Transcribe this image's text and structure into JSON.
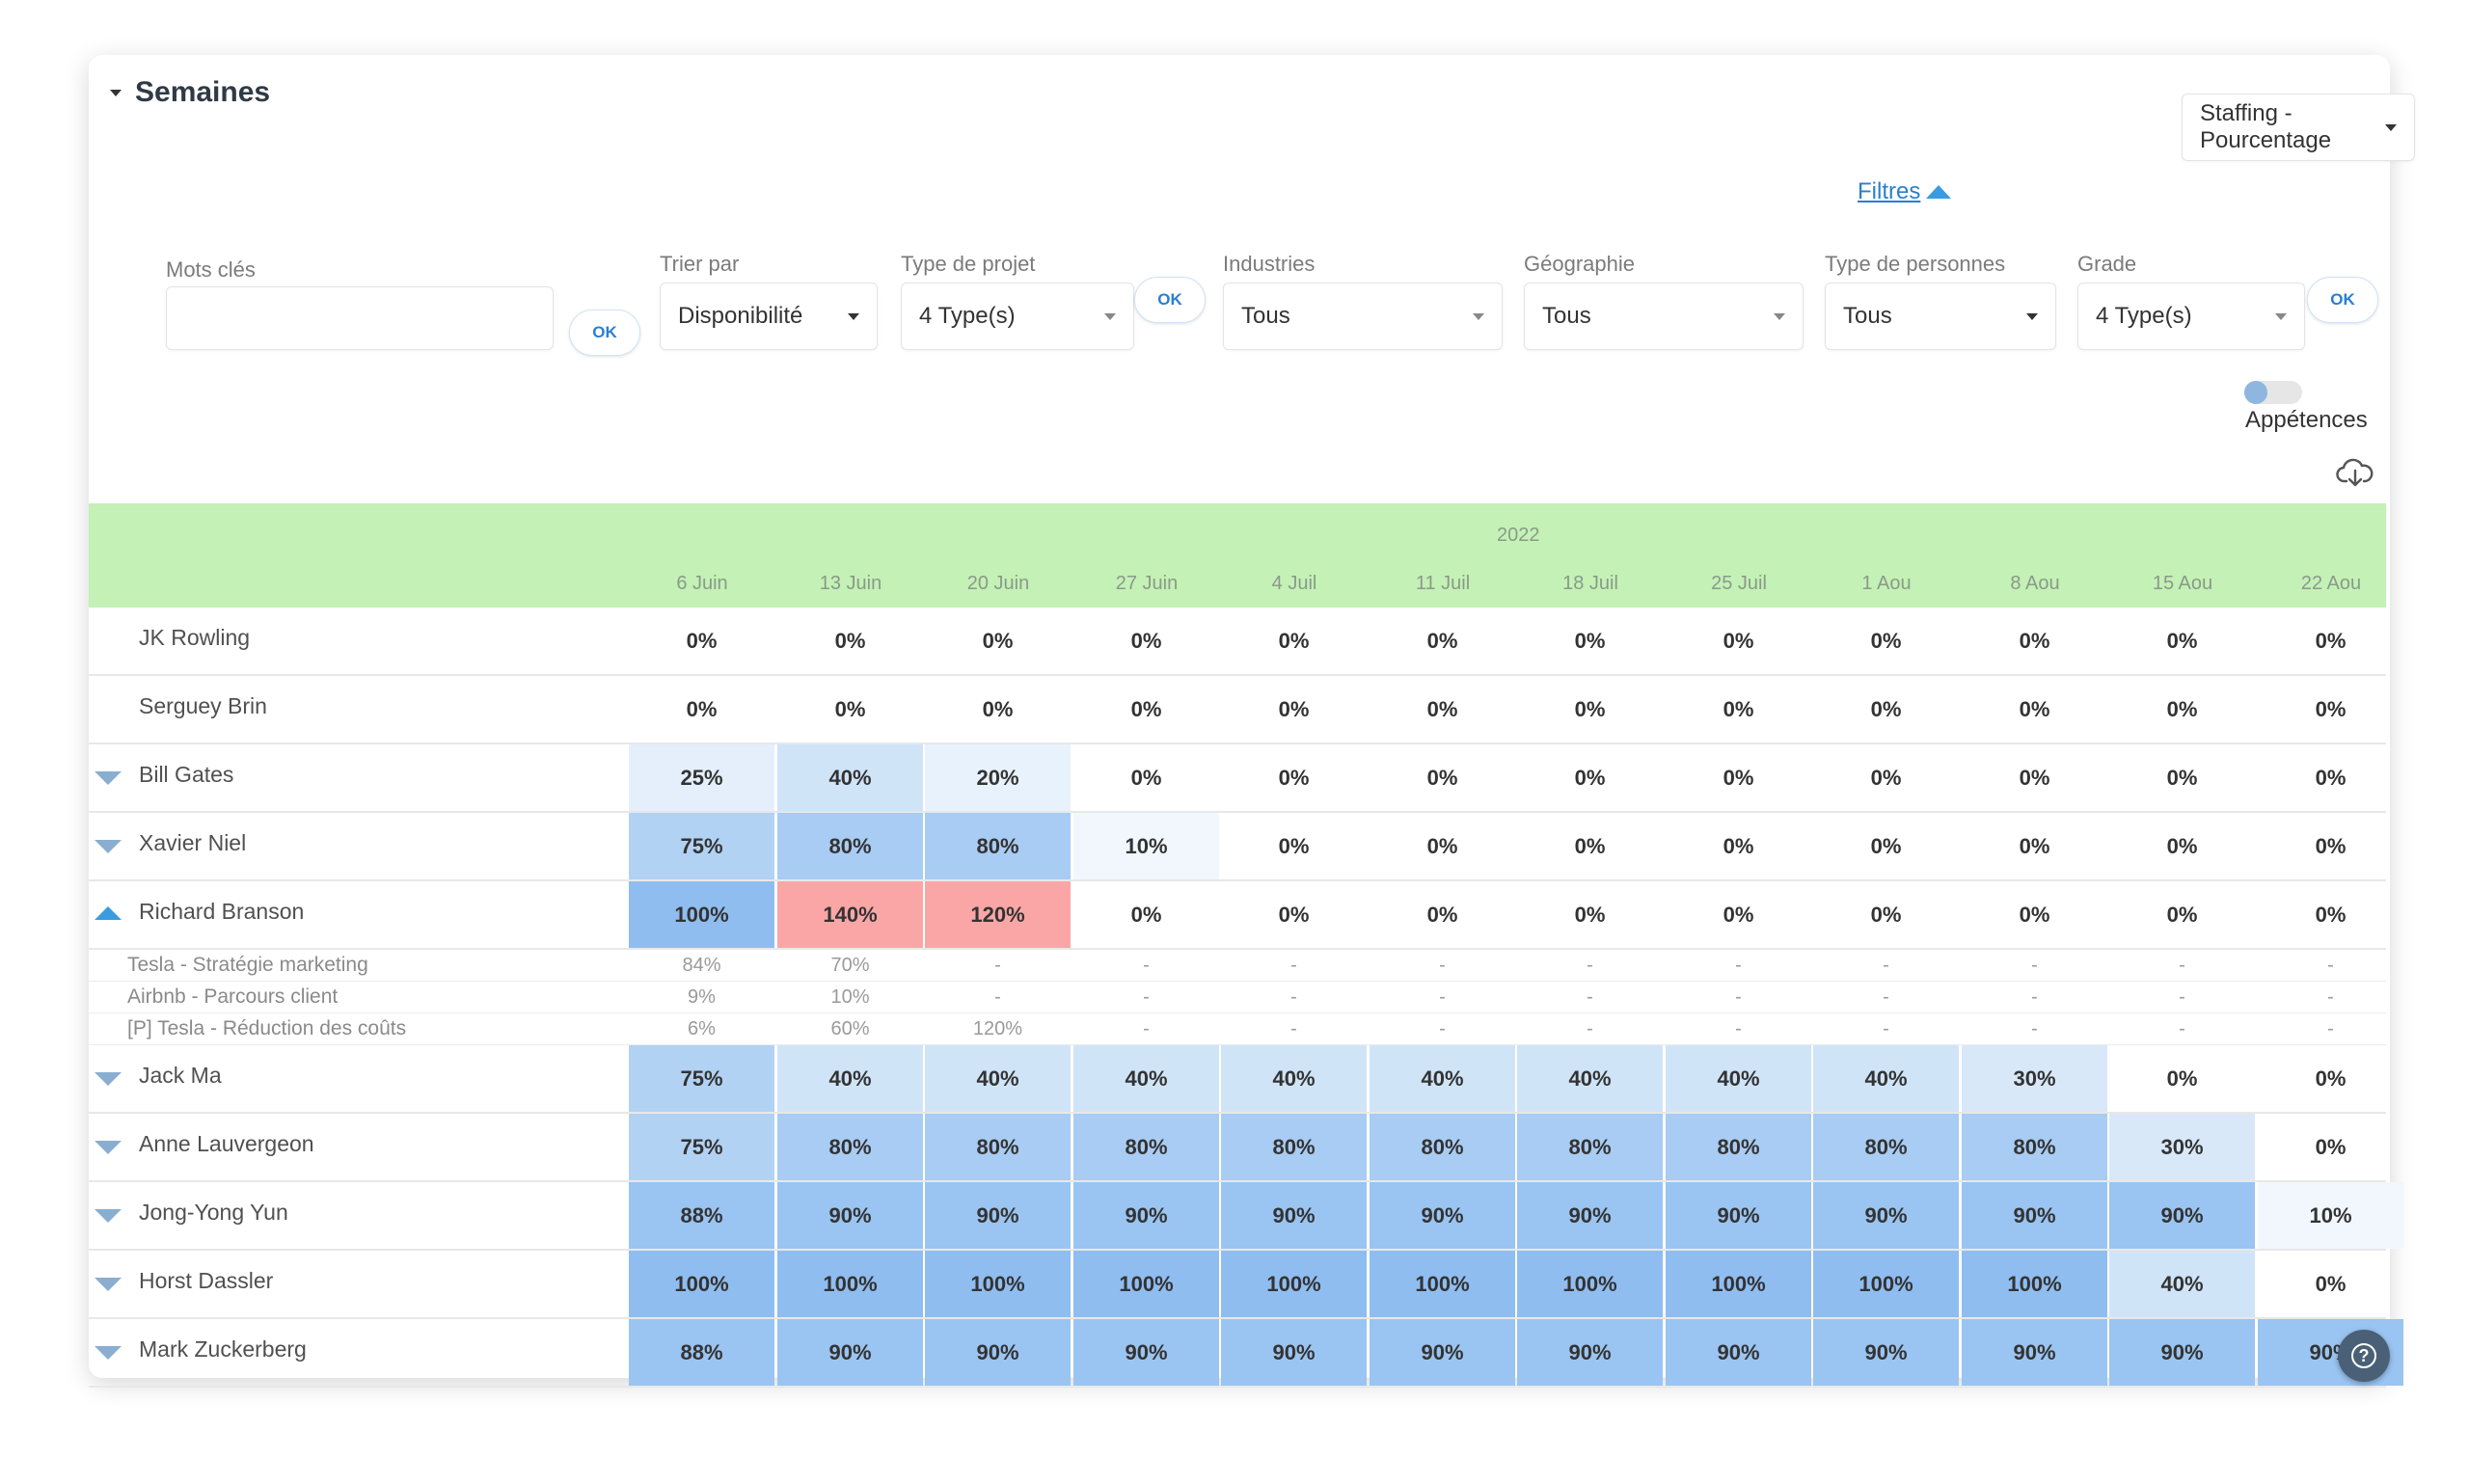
{
  "section": {
    "title": "Semaines"
  },
  "filters_link": "Filtres",
  "view_select": "Staffing - Pourcentage",
  "filters": {
    "keywords_label": "Mots clés",
    "keywords_value": "",
    "ok": "OK",
    "sort_label": "Trier par",
    "sort_value": "Disponibilité",
    "project_type_label": "Type de projet",
    "project_type_value": "4 Type(s)",
    "industries_label": "Industries",
    "industries_value": "Tous",
    "geo_label": "Géographie",
    "geo_value": "Tous",
    "people_type_label": "Type de personnes",
    "people_type_value": "Tous",
    "grade_label": "Grade",
    "grade_value": "4 Type(s)"
  },
  "toggle": {
    "label": "Appétences",
    "on": false
  },
  "icons": {
    "download": "cloud-download-icon",
    "help": "help-icon"
  },
  "table": {
    "year": "2022",
    "weeks": [
      "6 Juin",
      "13 Juin",
      "20 Juin",
      "27 Juin",
      "4 Juil",
      "11 Juil",
      "18 Juil",
      "25 Juil",
      "1 Aou",
      "8 Aou",
      "15 Aou",
      "22 Aou"
    ],
    "rows": [
      {
        "type": "main",
        "name": "JK Rowling",
        "indicator": "none",
        "values": [
          "0%",
          "0%",
          "0%",
          "0%",
          "0%",
          "0%",
          "0%",
          "0%",
          "0%",
          "0%",
          "0%",
          "0%"
        ]
      },
      {
        "type": "main",
        "name": "Serguey Brin",
        "indicator": "none",
        "values": [
          "0%",
          "0%",
          "0%",
          "0%",
          "0%",
          "0%",
          "0%",
          "0%",
          "0%",
          "0%",
          "0%",
          "0%"
        ]
      },
      {
        "type": "main",
        "name": "Bill Gates",
        "indicator": "down",
        "values": [
          "25%",
          "40%",
          "20%",
          "0%",
          "0%",
          "0%",
          "0%",
          "0%",
          "0%",
          "0%",
          "0%",
          "0%"
        ]
      },
      {
        "type": "main",
        "name": "Xavier Niel",
        "indicator": "down",
        "values": [
          "75%",
          "80%",
          "80%",
          "10%",
          "0%",
          "0%",
          "0%",
          "0%",
          "0%",
          "0%",
          "0%",
          "0%"
        ]
      },
      {
        "type": "main",
        "name": "Richard Branson",
        "indicator": "up",
        "values": [
          "100%",
          "140%",
          "120%",
          "0%",
          "0%",
          "0%",
          "0%",
          "0%",
          "0%",
          "0%",
          "0%",
          "0%"
        ]
      },
      {
        "type": "sub",
        "name": "Tesla - Stratégie marketing",
        "values": [
          "84%",
          "70%",
          "-",
          "-",
          "-",
          "-",
          "-",
          "-",
          "-",
          "-",
          "-",
          "-"
        ]
      },
      {
        "type": "sub",
        "name": "Airbnb - Parcours client",
        "values": [
          "9%",
          "10%",
          "-",
          "-",
          "-",
          "-",
          "-",
          "-",
          "-",
          "-",
          "-",
          "-"
        ]
      },
      {
        "type": "sub",
        "name": "[P] Tesla - Réduction des coûts",
        "values": [
          "6%",
          "60%",
          "120%",
          "-",
          "-",
          "-",
          "-",
          "-",
          "-",
          "-",
          "-",
          "-"
        ]
      },
      {
        "type": "main",
        "name": "Jack Ma",
        "indicator": "down",
        "values": [
          "75%",
          "40%",
          "40%",
          "40%",
          "40%",
          "40%",
          "40%",
          "40%",
          "40%",
          "30%",
          "0%",
          "0%"
        ]
      },
      {
        "type": "main",
        "name": "Anne Lauvergeon",
        "indicator": "down",
        "values": [
          "75%",
          "80%",
          "80%",
          "80%",
          "80%",
          "80%",
          "80%",
          "80%",
          "80%",
          "80%",
          "30%",
          "0%"
        ]
      },
      {
        "type": "main",
        "name": "Jong-Yong Yun",
        "indicator": "down",
        "values": [
          "88%",
          "90%",
          "90%",
          "90%",
          "90%",
          "90%",
          "90%",
          "90%",
          "90%",
          "90%",
          "90%",
          "10%"
        ]
      },
      {
        "type": "main",
        "name": "Horst Dassler",
        "indicator": "down",
        "values": [
          "100%",
          "100%",
          "100%",
          "100%",
          "100%",
          "100%",
          "100%",
          "100%",
          "100%",
          "100%",
          "40%",
          "0%"
        ]
      },
      {
        "type": "main",
        "name": "Mark Zuckerberg",
        "indicator": "down",
        "values": [
          "88%",
          "90%",
          "90%",
          "90%",
          "90%",
          "90%",
          "90%",
          "90%",
          "90%",
          "90%",
          "90%",
          "90%"
        ]
      }
    ]
  },
  "colors": {
    "header_bg": "#c4f1b5",
    "accent": "#2a7fd1",
    "over_capacity": "#fba6a6",
    "load_100": "#8fbdf0",
    "load_90": "#9ac4f1",
    "load_80": "#a8ccf3",
    "load_75": "#b2d2f4",
    "load_40": "#d0e4f8",
    "load_30": "#d8e8f9",
    "load_25": "#e4effb",
    "load_20": "#e8f2fc",
    "load_10": "#f1f7fd"
  }
}
